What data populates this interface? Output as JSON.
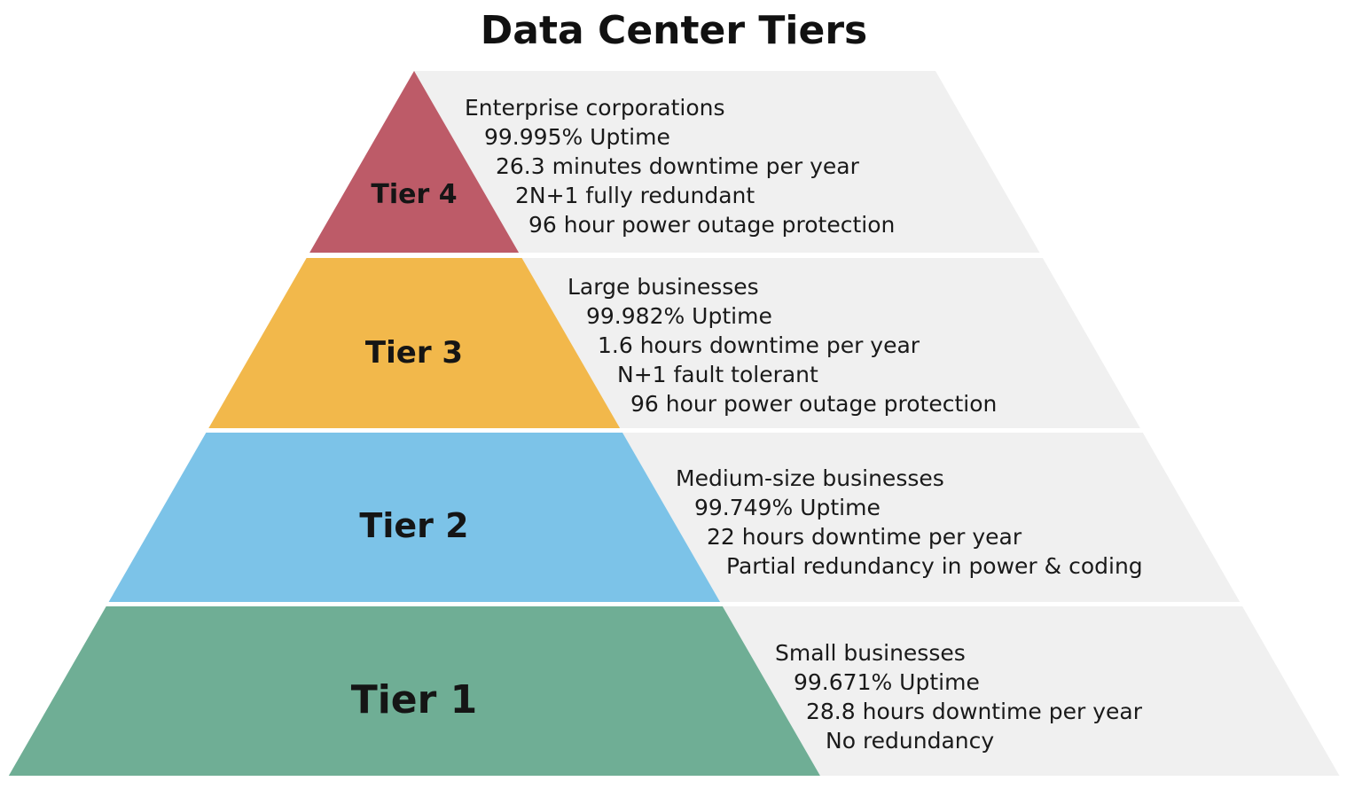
{
  "title": "Data Center Tiers",
  "tiers": [
    {
      "label": "Tier 4",
      "color": "#bd5b68",
      "lines": [
        "Enterprise corporations",
        "99.995% Uptime",
        "26.3 minutes downtime per year",
        "2N+1 fully redundant",
        "96 hour power outage protection"
      ]
    },
    {
      "label": "Tier 3",
      "color": "#f2b84b",
      "lines": [
        "Large businesses",
        "99.982% Uptime",
        "1.6 hours downtime per year",
        "N+1 fault tolerant",
        "96 hour power outage protection"
      ]
    },
    {
      "label": "Tier 2",
      "color": "#7cc3e8",
      "lines": [
        "Medium-size businesses",
        "99.749% Uptime",
        "22 hours downtime per year",
        "Partial redundancy in power & coding"
      ]
    },
    {
      "label": "Tier 1",
      "color": "#6fae95",
      "lines": [
        "Small businesses",
        "99.671% Uptime",
        "28.8 hours downtime per year",
        "No redundancy"
      ]
    }
  ],
  "panel_color": "#f0f0f0"
}
